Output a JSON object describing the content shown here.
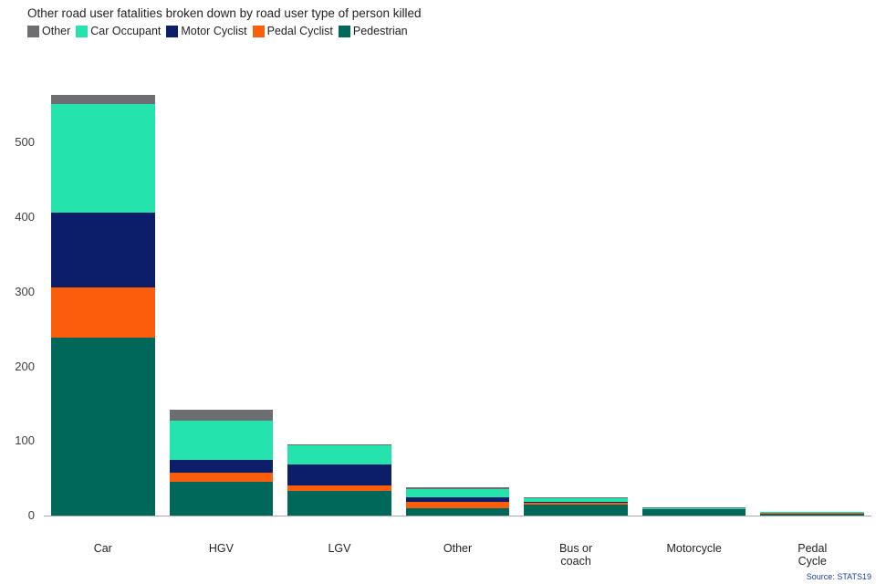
{
  "chart_data": {
    "type": "bar",
    "stacked": true,
    "title": "Other road user fatalities broken down by road user type of person killed",
    "categories": [
      "Car",
      "HGV",
      "LGV",
      "Other",
      "Bus or\ncoach",
      "Motorcycle",
      "Pedal\nCycle"
    ],
    "series": [
      {
        "name": "Pedestrian",
        "color": "#00685b",
        "values": [
          238,
          45,
          33,
          10,
          15,
          8,
          3
        ]
      },
      {
        "name": "Pedal Cyclist",
        "color": "#fa5e0d",
        "values": [
          68,
          12,
          8,
          8,
          2,
          1,
          1
        ]
      },
      {
        "name": "Motor Cyclist",
        "color": "#0c1e69",
        "values": [
          100,
          18,
          28,
          7,
          2,
          0,
          0
        ]
      },
      {
        "name": "Car Occupant",
        "color": "#25e3ac",
        "values": [
          146,
          52,
          25,
          11,
          4,
          1,
          1
        ]
      },
      {
        "name": "Other",
        "color": "#6d6e71",
        "values": [
          12,
          15,
          1,
          2,
          1,
          1,
          0
        ]
      }
    ],
    "legend_order": [
      "Other",
      "Car Occupant",
      "Motor Cyclist",
      "Pedal Cyclist",
      "Pedestrian"
    ],
    "yticks": [
      0,
      100,
      200,
      300,
      400,
      500
    ],
    "ymax": 575,
    "ylabel": "",
    "xlabel": "",
    "grid": false,
    "legend_position": "top-left",
    "source": "Source: STATS19"
  }
}
